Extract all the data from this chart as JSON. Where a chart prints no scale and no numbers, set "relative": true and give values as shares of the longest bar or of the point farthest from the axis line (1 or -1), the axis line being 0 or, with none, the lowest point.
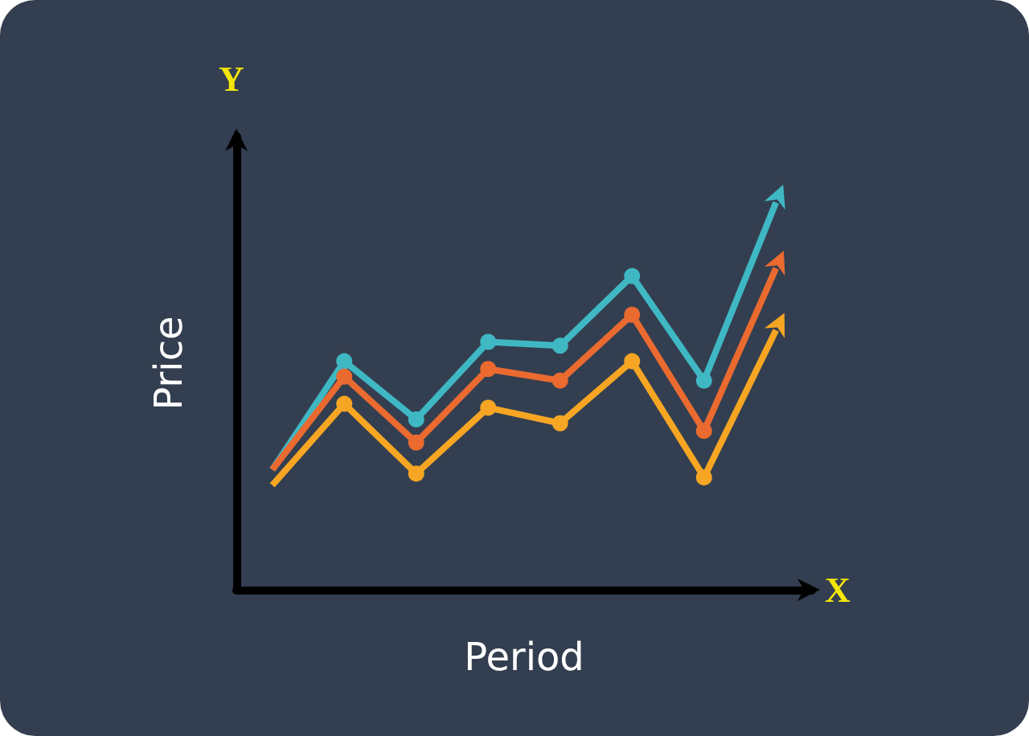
{
  "chart_data": {
    "type": "line",
    "relative": true,
    "xlabel": "Period",
    "ylabel": "Price",
    "annotations": [
      "Y",
      "X"
    ],
    "marker": "circle",
    "line_style": "solid",
    "grid": false,
    "categories": [
      null,
      null,
      null,
      null,
      null,
      null,
      null,
      null
    ],
    "series": [
      {
        "color": "#3fb8c4",
        "values": [
          0.31,
          0.59,
          0.44,
          0.64,
          0.63,
          0.81,
          0.54,
          1.0
        ]
      },
      {
        "color": "#ea6a30",
        "values": [
          0.31,
          0.55,
          0.38,
          0.57,
          0.54,
          0.71,
          0.41,
          0.83
        ]
      },
      {
        "color": "#f6a623",
        "values": [
          0.27,
          0.48,
          0.3,
          0.47,
          0.43,
          0.59,
          0.29,
          0.67
        ]
      }
    ]
  }
}
